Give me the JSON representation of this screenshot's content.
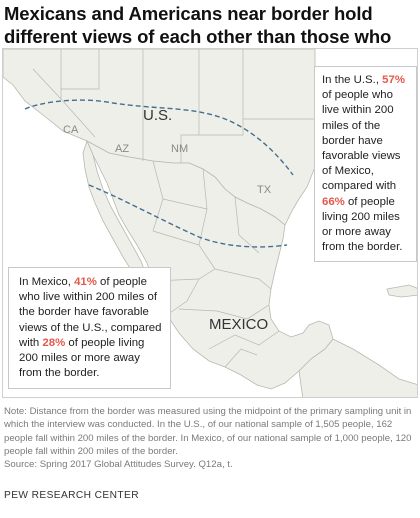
{
  "title": "Mexicans and Americans near border hold different views of each other than those who live further away",
  "map": {
    "country_labels": {
      "us": "U.S.",
      "mexico": "MEXICO"
    },
    "state_labels": {
      "ca": "CA",
      "az": "AZ",
      "nm": "NM",
      "tx": "TX"
    },
    "colors": {
      "land": "#efefe9",
      "water": "#ffffff",
      "borders": "#b8b8b2",
      "dashed_line": "#456d8f",
      "highlight": "#e3584a"
    }
  },
  "callouts": {
    "us": {
      "part1": "In the U.S., ",
      "pct_near": "57%",
      "part2": " of people who live within 200 miles of the border have favorable views of Mexico, compared with ",
      "pct_far": "66%",
      "part3": " of people living 200 miles or more away from the border."
    },
    "mexico": {
      "part1": "In Mexico, ",
      "pct_near": "41%",
      "part2": " of people who live within 200 miles of the border have favorable views of the U.S., compared with ",
      "pct_far": "28%",
      "part3": " of people living 200 miles or more away from the border."
    }
  },
  "note": "Note: Distance from the border was measured using the midpoint of the primary sampling unit in which the interview was conducted. In the U.S., of our national sample of 1,505 people, 162 people fall within 200 miles of the border. In Mexico, of our national sample of 1,000 people, 120 people fall within 200 miles of the border.",
  "source": "Source: Spring 2017 Global Attitudes Survey. Q12a, t.",
  "footer": "PEW RESEARCH CENTER"
}
